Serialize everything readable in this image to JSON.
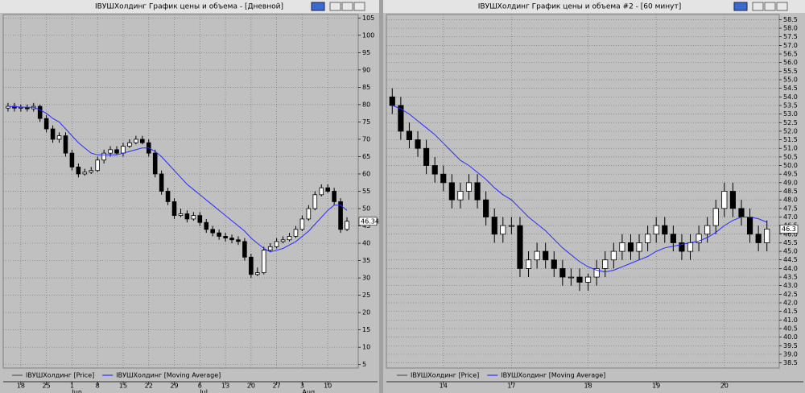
{
  "chart_data": [
    {
      "type": "candlestick",
      "title": "IВУШХолдинг График цены и объема - [Дневной]",
      "categories": [
        null,
        null,
        "18",
        null,
        null,
        null,
        "25",
        null,
        null,
        null,
        "1",
        null,
        null,
        null,
        "8",
        null,
        null,
        null,
        "15",
        null,
        null,
        null,
        "22",
        null,
        null,
        null,
        "29",
        null,
        null,
        null,
        "6",
        null,
        null,
        null,
        "13",
        null,
        null,
        null,
        "20",
        null,
        null,
        null,
        "27",
        null,
        null,
        null,
        "3",
        null,
        null,
        null,
        "10",
        null,
        null,
        null
      ],
      "months": [
        "Jun",
        "Jul",
        "Aug"
      ],
      "series": [
        {
          "name": "IВУШХолдинг [Price]",
          "color": "#000000",
          "open": [
            79,
            79.5,
            79,
            79.2,
            78.8,
            79.5,
            76,
            73,
            70,
            71,
            66,
            62,
            60,
            60.5,
            61,
            64,
            66,
            67,
            66,
            68,
            69,
            70,
            69,
            66,
            60,
            55,
            52,
            48,
            48.5,
            47,
            48,
            46,
            44,
            43,
            42,
            41.5,
            41,
            40.5,
            36,
            31,
            31.5,
            38,
            39,
            40.5,
            41,
            42,
            44,
            47,
            50,
            54,
            56,
            55,
            52,
            44
          ],
          "high": [
            80.5,
            80.5,
            80,
            80,
            80.5,
            80,
            77,
            74,
            72,
            72,
            67,
            63,
            61.5,
            62,
            65,
            67,
            68,
            68,
            69,
            70,
            71,
            71,
            70,
            67,
            61,
            56,
            53,
            50,
            49.5,
            49,
            49,
            47,
            45,
            44,
            43,
            42.5,
            42,
            41.5,
            37,
            33,
            39,
            40,
            41.5,
            42,
            43,
            45,
            48,
            51,
            55,
            57,
            57,
            56,
            53,
            47.5
          ],
          "low": [
            78,
            78,
            78,
            78,
            78,
            75,
            72,
            69,
            69,
            65,
            61,
            59,
            59.5,
            60,
            60.5,
            63,
            65,
            65.5,
            65,
            67.5,
            68.5,
            68.5,
            65,
            59,
            54,
            51,
            47,
            47.5,
            46,
            46.5,
            45,
            43,
            42,
            41,
            40.5,
            40,
            39.5,
            35,
            30,
            30.5,
            31,
            37.5,
            38.5,
            40,
            40.5,
            41.5,
            43.5,
            46.5,
            49.5,
            53.5,
            54.5,
            51,
            43,
            43.5
          ],
          "close": [
            79.5,
            79,
            79.2,
            78.8,
            79.5,
            76,
            73,
            70,
            71,
            66,
            62,
            60,
            60.5,
            61,
            64,
            66,
            67,
            66,
            68,
            69,
            70,
            69,
            66,
            60,
            55,
            52,
            48,
            48.5,
            47,
            48,
            46,
            44,
            43,
            42,
            41.5,
            41,
            40.5,
            36,
            31,
            31.5,
            38,
            39,
            40.5,
            41,
            42,
            44,
            47,
            50,
            54,
            56,
            55,
            52,
            44,
            46.34
          ]
        },
        {
          "name": "IВУШХолдинг [Moving Average]",
          "color": "#2a2aff",
          "values": [
            79.5,
            79.4,
            79.3,
            79.2,
            79.2,
            78.5,
            77.5,
            76,
            75,
            73,
            71,
            69,
            67.5,
            66,
            65.5,
            65.5,
            65.5,
            65.5,
            66,
            66.5,
            67,
            67.5,
            67.5,
            66.5,
            65,
            63,
            61,
            59,
            57,
            55.5,
            54,
            52.5,
            51,
            49.5,
            48,
            46.5,
            45,
            43.5,
            41.5,
            40,
            38.5,
            37.5,
            38,
            38.5,
            39.5,
            40.5,
            42,
            43.5,
            45.5,
            47.5,
            49.5,
            51,
            51,
            49.5
          ]
        }
      ],
      "ylim": [
        4,
        106
      ],
      "yticks": [
        5,
        10,
        15,
        20,
        25,
        30,
        35,
        40,
        45,
        50,
        55,
        60,
        65,
        70,
        75,
        80,
        85,
        90,
        95,
        100,
        105
      ],
      "grid": true
    },
    {
      "type": "candlestick",
      "title": "IВУШХолдинг График цены и объема #2 - [60 минут]",
      "categories": [
        null,
        null,
        null,
        null,
        null,
        null,
        "14",
        null,
        null,
        null,
        null,
        null,
        null,
        null,
        "17",
        null,
        null,
        null,
        null,
        null,
        null,
        null,
        null,
        "18",
        null,
        null,
        null,
        null,
        null,
        null,
        null,
        "19",
        null,
        null,
        null,
        null,
        null,
        null,
        null,
        "20",
        null,
        null,
        null,
        null,
        null
      ],
      "series": [
        {
          "name": "IВУШХолдинг [Price]",
          "color": "#000000",
          "open": [
            54,
            53.5,
            52,
            51.5,
            51,
            50,
            49.5,
            49,
            48,
            48.5,
            49,
            48,
            47,
            46,
            46.5,
            46.5,
            44,
            44.5,
            45,
            44.5,
            44,
            43.5,
            43.5,
            43.2,
            43.5,
            44,
            44.5,
            45,
            45.5,
            45,
            45.5,
            46,
            46.5,
            46,
            45.5,
            45,
            45.5,
            46,
            46.5,
            47.5,
            48.5,
            47.5,
            47,
            46,
            45.5
          ],
          "high": [
            54.5,
            54,
            52.5,
            52,
            51.5,
            50.5,
            50,
            49.5,
            49,
            49.5,
            49.5,
            48.5,
            47.5,
            47,
            47,
            47,
            45,
            45.5,
            45.5,
            45,
            44.5,
            44,
            44,
            43.7,
            44.5,
            45,
            45.5,
            46,
            46,
            46,
            46.5,
            47,
            47,
            46.5,
            46,
            46,
            46.5,
            47,
            48,
            49,
            49,
            48,
            47.5,
            46.5,
            46.8
          ],
          "low": [
            53,
            51.5,
            51,
            50.5,
            49.5,
            49,
            48.5,
            47.5,
            47.5,
            48,
            47.5,
            46.5,
            45.5,
            45.5,
            46,
            43.5,
            43.5,
            44,
            44,
            43.5,
            43,
            43,
            42.7,
            42.7,
            43,
            43.5,
            44,
            44.5,
            44.5,
            44.5,
            45,
            45.5,
            45.5,
            45,
            44.5,
            44.5,
            45,
            45.5,
            46,
            47,
            47,
            46.5,
            45.5,
            45,
            45
          ],
          "close": [
            53.5,
            52,
            51.5,
            51,
            50,
            49.5,
            49,
            48,
            48.5,
            49,
            48,
            47,
            46,
            46.5,
            46.5,
            44,
            44.5,
            45,
            44.5,
            44,
            43.5,
            43.5,
            43.2,
            43.5,
            44,
            44.5,
            45,
            45.5,
            45,
            45.5,
            46,
            46.5,
            46,
            45.5,
            45,
            45.5,
            46,
            46.5,
            47.5,
            48.5,
            47.5,
            47,
            46,
            45.5,
            46.3
          ]
        },
        {
          "name": "IВУШХолдинг [Moving Average]",
          "color": "#2a2aff",
          "values": [
            53.5,
            53.3,
            53,
            52.6,
            52.2,
            51.8,
            51.3,
            50.8,
            50.3,
            50,
            49.6,
            49.2,
            48.7,
            48.3,
            48,
            47.5,
            47,
            46.6,
            46.2,
            45.7,
            45.2,
            44.8,
            44.4,
            44.1,
            43.9,
            43.8,
            43.9,
            44.1,
            44.3,
            44.5,
            44.7,
            45,
            45.2,
            45.3,
            45.4,
            45.5,
            45.6,
            45.8,
            46.1,
            46.5,
            46.8,
            47,
            47,
            46.9,
            46.7
          ]
        }
      ],
      "ylim": [
        38.2,
        58.8
      ],
      "yticks": [
        38.5,
        {
          "value": 39,
          "label": "39.0"
        },
        39.5,
        {
          "value": 40,
          "label": "40.0"
        },
        40.5,
        {
          "value": 41,
          "label": "41.0"
        },
        41.5,
        {
          "value": 42,
          "label": "42.0"
        },
        42.5,
        {
          "value": 43,
          "label": "43.0"
        },
        43.5,
        {
          "value": 44,
          "label": "44.0"
        },
        44.5,
        {
          "value": 45,
          "label": "45.0"
        },
        45.5,
        {
          "value": 46,
          "label": "46.0"
        },
        46.5,
        {
          "value": 47,
          "label": "47.0"
        },
        47.5,
        {
          "value": 48,
          "label": "48.0"
        },
        48.5,
        {
          "value": 49,
          "label": "49.0"
        },
        49.5,
        {
          "value": 50,
          "label": "50.0"
        },
        50.5,
        {
          "value": 51,
          "label": "51.0"
        },
        51.5,
        {
          "value": 52,
          "label": "52.0"
        },
        52.5,
        {
          "value": 53,
          "label": "53.0"
        },
        53.5,
        {
          "value": 54,
          "label": "54.0"
        },
        54.5,
        {
          "value": 55,
          "label": "55.0"
        },
        55.5,
        {
          "value": 56,
          "label": "56.0"
        },
        56.5,
        {
          "value": 57,
          "label": "57.0"
        },
        57.5,
        {
          "value": 58,
          "label": "58.0"
        },
        58.5
      ],
      "grid": true
    }
  ]
}
